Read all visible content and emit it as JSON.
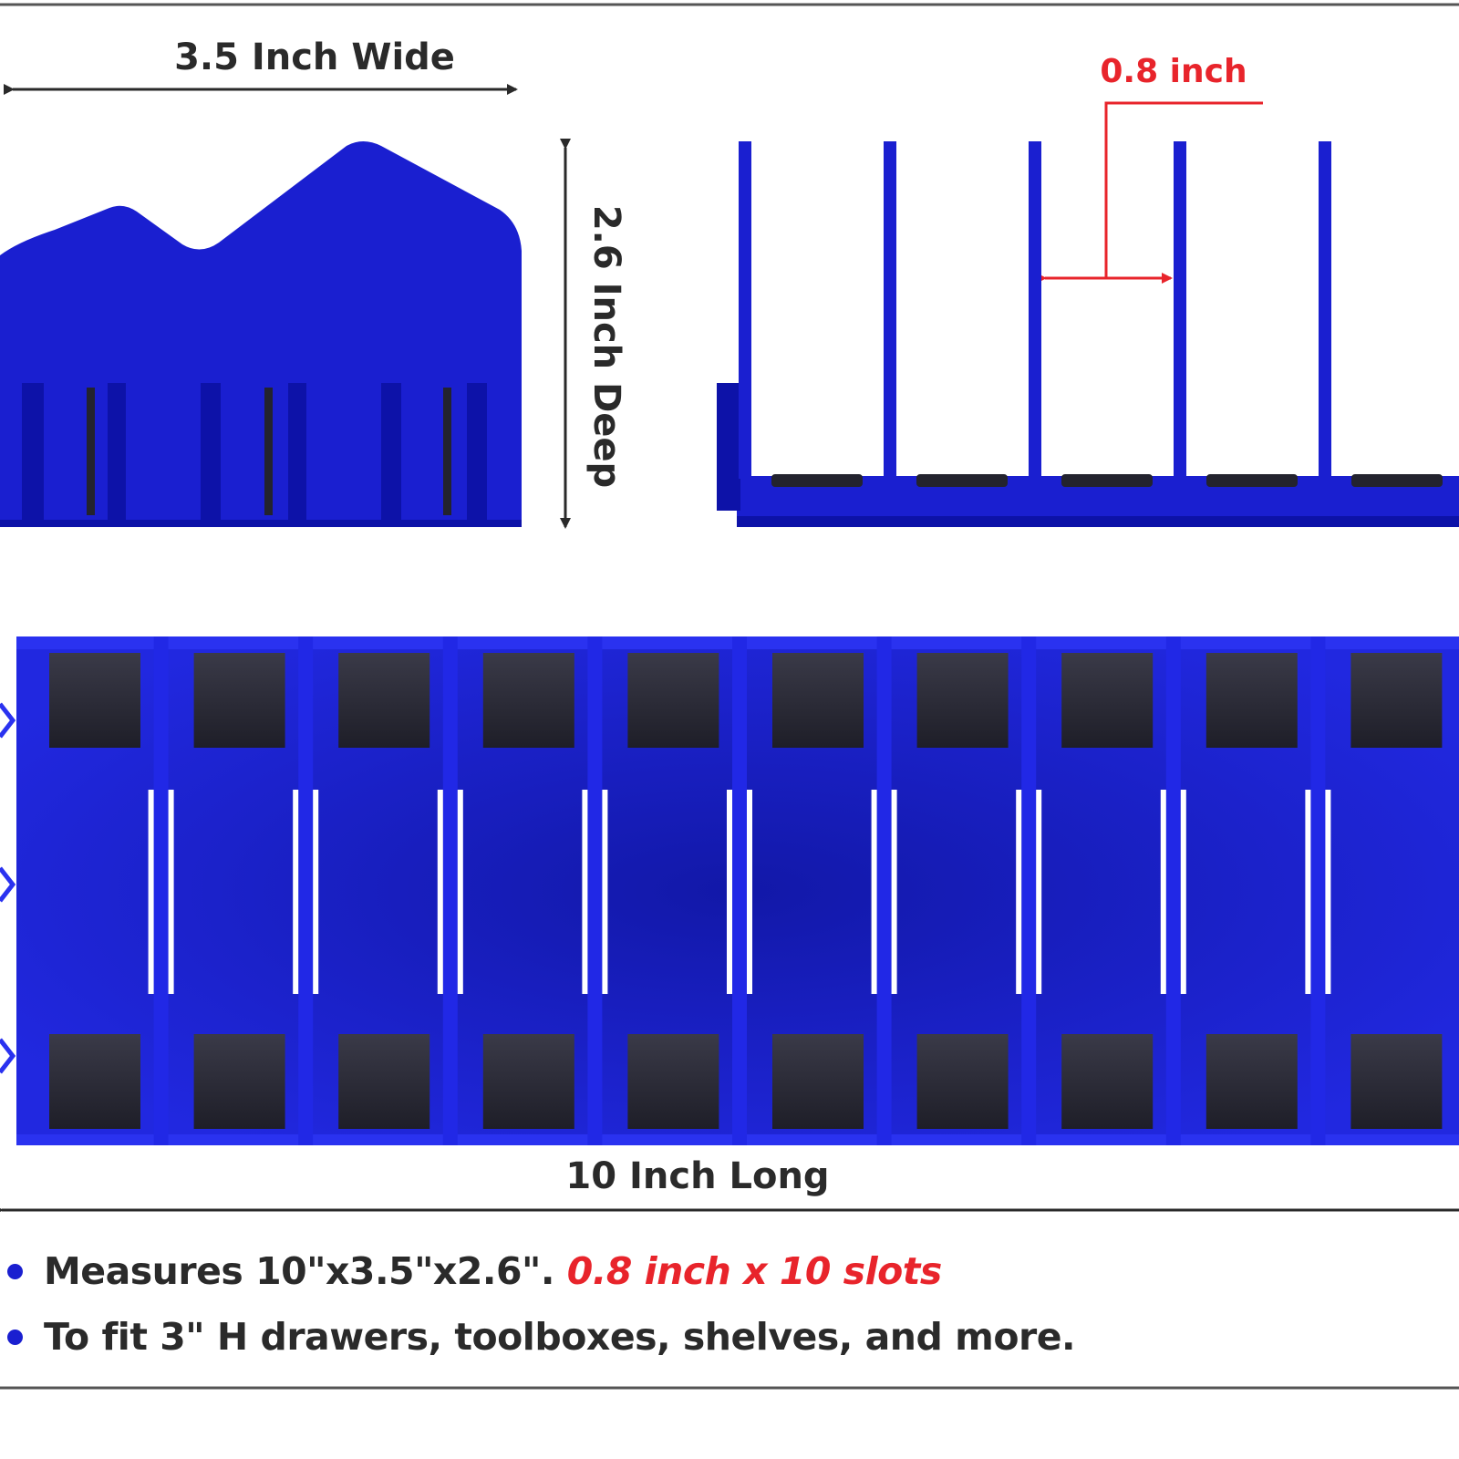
{
  "colors": {
    "product_blue": "#1a1fd0",
    "product_blue_dark": "#0d12a8",
    "pad_dark": "#2b2b3a",
    "accent_red": "#e8242b",
    "text_dark": "#2a2a2a",
    "bullet_dot": "#1a1fd0",
    "frame_line": "#555555"
  },
  "dimensions": {
    "width_label": "3.5 Inch Wide",
    "depth_label": "2.6 Inch Deep",
    "slot_label": "0.8 inch",
    "length_label": "10 Inch Long"
  },
  "features": [
    {
      "text": "Measures 10\"x3.5\"x2.6\".",
      "highlight": "0.8 inch x 10 slots"
    },
    {
      "text": "To fit 3\" H drawers, toolboxes, shelves, and more.",
      "highlight": ""
    }
  ],
  "views": {
    "end_view": "end-profile",
    "side_view": "side-profile",
    "top_view": "top-view",
    "top_view_slot_count": 10
  }
}
